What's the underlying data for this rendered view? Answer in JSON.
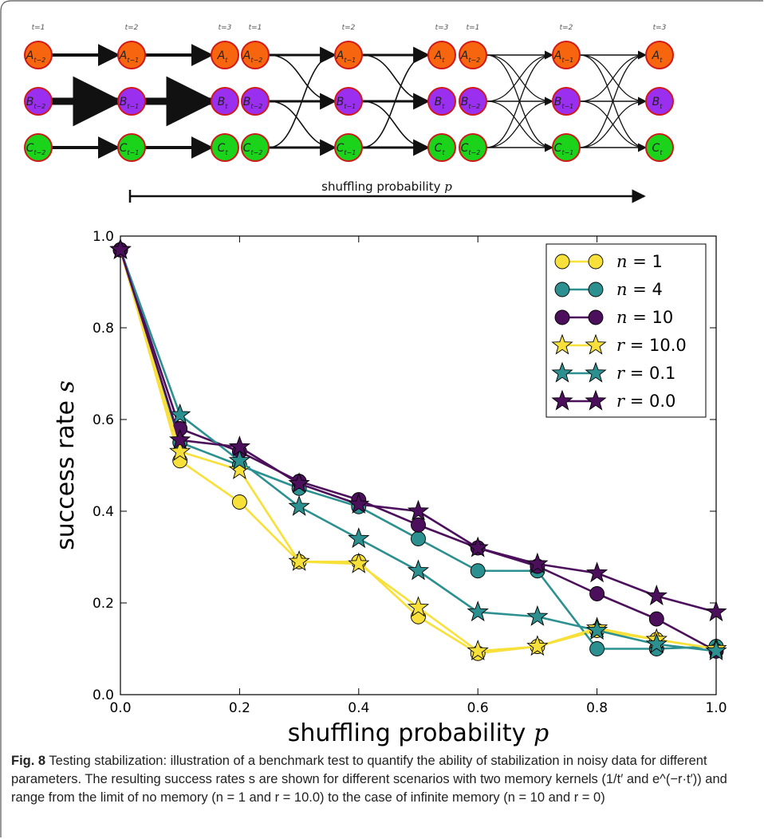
{
  "diagram": {
    "time_labels": [
      "t=1",
      "t=2",
      "t=3"
    ],
    "node_rows": [
      {
        "letter": "A",
        "subscripts": [
          "t−2",
          "t−1",
          "t"
        ],
        "color": "#f7660f"
      },
      {
        "letter": "B",
        "subscripts": [
          "t−2",
          "t−1",
          "t"
        ],
        "color": "#9b2ff0"
      },
      {
        "letter": "C",
        "subscripts": [
          "t−2",
          "t−1",
          "t"
        ],
        "color": "#1bd31b"
      }
    ],
    "node_border_color": "#d01818",
    "arrow_label": "shuffling probability",
    "arrow_label_symbol": "p"
  },
  "chart_data": {
    "type": "line",
    "xlabel": "shuffling probability",
    "xlabel_symbol": "p",
    "ylabel": "success rate",
    "ylabel_symbol": "s",
    "xlim": [
      0.0,
      1.0
    ],
    "ylim": [
      0.0,
      1.0
    ],
    "xticks": [
      "0.0",
      "0.2",
      "0.4",
      "0.6",
      "0.8",
      "1.0"
    ],
    "yticks": [
      "0.0",
      "0.2",
      "0.4",
      "0.6",
      "0.8",
      "1.0"
    ],
    "legend_position": "top-right",
    "grid": false,
    "x": [
      0.0,
      0.1,
      0.2,
      0.3,
      0.4,
      0.5,
      0.6,
      0.7,
      0.8,
      0.9,
      1.0
    ],
    "series": [
      {
        "name": "n = 1",
        "marker": "circle",
        "color": "#f7e03a",
        "values": [
          0.97,
          0.51,
          0.42,
          0.29,
          0.29,
          0.17,
          0.09,
          0.105,
          0.14,
          0.12,
          0.1
        ]
      },
      {
        "name": "n = 4",
        "marker": "circle",
        "color": "#2b908f",
        "values": [
          0.97,
          0.55,
          0.5,
          0.45,
          0.41,
          0.34,
          0.27,
          0.27,
          0.1,
          0.1,
          0.105
        ]
      },
      {
        "name": "n = 10",
        "marker": "circle",
        "color": "#4b0f5b",
        "values": [
          0.97,
          0.58,
          0.53,
          0.465,
          0.425,
          0.37,
          0.32,
          0.28,
          0.22,
          0.165,
          0.095
        ]
      },
      {
        "name": "r = 10.0",
        "marker": "star",
        "color": "#f7e03a",
        "values": [
          0.97,
          0.53,
          0.49,
          0.29,
          0.285,
          0.19,
          0.095,
          0.105,
          0.145,
          0.12,
          0.1
        ]
      },
      {
        "name": "r = 0.1",
        "marker": "star",
        "color": "#2b908f",
        "values": [
          0.97,
          0.61,
          0.51,
          0.41,
          0.34,
          0.27,
          0.18,
          0.17,
          0.14,
          0.11,
          0.095
        ]
      },
      {
        "name": "r = 0.0",
        "marker": "star",
        "color": "#4b0f5b",
        "values": [
          0.97,
          0.555,
          0.54,
          0.46,
          0.415,
          0.4,
          0.32,
          0.285,
          0.265,
          0.215,
          0.18
        ]
      }
    ]
  },
  "caption": {
    "label": "Fig. 8",
    "text": "Testing stabilization: illustration of a benchmark test to quantify the ability of stabilization in noisy data for different parameters. The resulting success rates s are shown for different scenarios with two memory kernels (1/t′ and e^(−r·t′)) and range from the limit of no memory (n = 1 and r = 10.0) to the case of infinite memory (n = 10 and r = 0)"
  }
}
